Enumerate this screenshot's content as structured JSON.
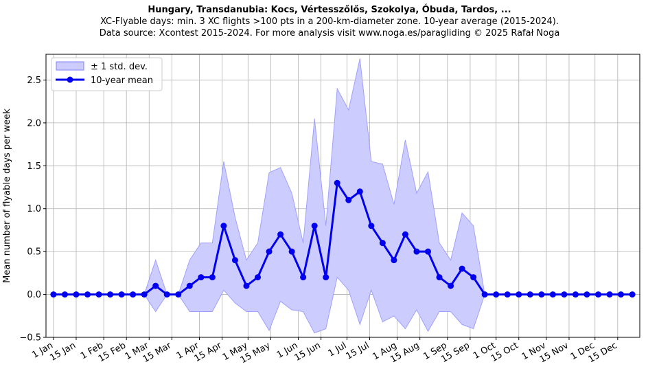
{
  "chart_data": {
    "type": "line",
    "title": "Hungary, Transdanubia: Kocs, Vértesszőlős, Szokolya, Óbuda, Tardos, ...",
    "subtitle": "XC-Flyable days: min. 3 XC flights >100 pts in a 200-km-diameter zone. 10-year average (2015-2024).",
    "source_note": "Data source: Xcontest 2015-2024. For more analysis visit www.noga.es/paragliding © 2025 Rafał Noga",
    "xlabel": "",
    "ylabel": "Mean number of flyable days per week",
    "ylim": [
      -0.5,
      2.8
    ],
    "yticks": [
      -0.5,
      0.0,
      0.5,
      1.0,
      1.5,
      2.0,
      2.5
    ],
    "ytick_labels": [
      "−0.5",
      "0.0",
      "0.5",
      "1.0",
      "1.5",
      "2.0",
      "2.5"
    ],
    "x_tick_labels": [
      "1 Jan",
      "15 Jan",
      "1 Feb",
      "15 Feb",
      "1 Mar",
      "15 Mar",
      "1 Apr",
      "15 Apr",
      "1 May",
      "15 May",
      "1 Jun",
      "15 Jun",
      "1 Jul",
      "15 Jul",
      "1 Aug",
      "15 Aug",
      "1 Sep",
      "15 Sep",
      "1 Oct",
      "15 Oct",
      "1 Nov",
      "15 Nov",
      "1 Dec",
      "15 Dec"
    ],
    "grid": true,
    "legend_position": "top-left",
    "legend": [
      "± 1 std. dev.",
      "10-year mean"
    ],
    "weeks": [
      1,
      2,
      3,
      4,
      5,
      6,
      7,
      8,
      9,
      10,
      11,
      12,
      13,
      14,
      15,
      16,
      17,
      18,
      19,
      20,
      21,
      22,
      23,
      24,
      25,
      26,
      27,
      28,
      29,
      30,
      31,
      32,
      33,
      34,
      35,
      36,
      37,
      38,
      39,
      40,
      41,
      42,
      43,
      44,
      45,
      46,
      47,
      48,
      49,
      50,
      51,
      52
    ],
    "series": [
      {
        "name": "10-year mean",
        "color": "#0000ee",
        "values": [
          0,
          0,
          0,
          0,
          0,
          0,
          0,
          0,
          0,
          0.1,
          0,
          0,
          0.1,
          0.2,
          0.2,
          0.8,
          0.4,
          0.1,
          0.2,
          0.5,
          0.7,
          0.5,
          0.2,
          0.8,
          0.2,
          1.3,
          1.1,
          1.2,
          0.8,
          0.6,
          0.4,
          0.7,
          0.5,
          0.5,
          0.2,
          0.1,
          0.3,
          0.2,
          0,
          0,
          0,
          0,
          0,
          0,
          0,
          0,
          0,
          0,
          0,
          0,
          0,
          0
        ]
      },
      {
        "name": "± 1 std. dev. upper",
        "color": "#8080ff",
        "values": [
          0,
          0,
          0,
          0,
          0,
          0,
          0,
          0,
          0,
          0.4,
          0,
          0,
          0.4,
          0.6,
          0.6,
          1.55,
          0.9,
          0.4,
          0.6,
          1.42,
          1.48,
          1.18,
          0.6,
          2.05,
          0.8,
          2.4,
          2.15,
          2.75,
          1.55,
          1.52,
          1.05,
          1.8,
          1.18,
          1.43,
          0.6,
          0.4,
          0.95,
          0.8,
          0,
          0,
          0,
          0,
          0,
          0,
          0,
          0,
          0,
          0,
          0,
          0,
          0,
          0
        ]
      },
      {
        "name": "± 1 std. dev. lower",
        "color": "#8080ff",
        "values": [
          0,
          0,
          0,
          0,
          0,
          0,
          0,
          0,
          0,
          -0.2,
          0,
          0,
          -0.2,
          -0.2,
          -0.2,
          0.05,
          -0.1,
          -0.2,
          -0.2,
          -0.42,
          -0.08,
          -0.18,
          -0.2,
          -0.45,
          -0.4,
          0.2,
          0.05,
          -0.35,
          0.05,
          -0.32,
          -0.25,
          -0.4,
          -0.18,
          -0.43,
          -0.2,
          -0.2,
          -0.35,
          -0.4,
          0,
          0,
          0,
          0,
          0,
          0,
          0,
          0,
          0,
          0,
          0,
          0,
          0,
          0
        ]
      }
    ]
  }
}
